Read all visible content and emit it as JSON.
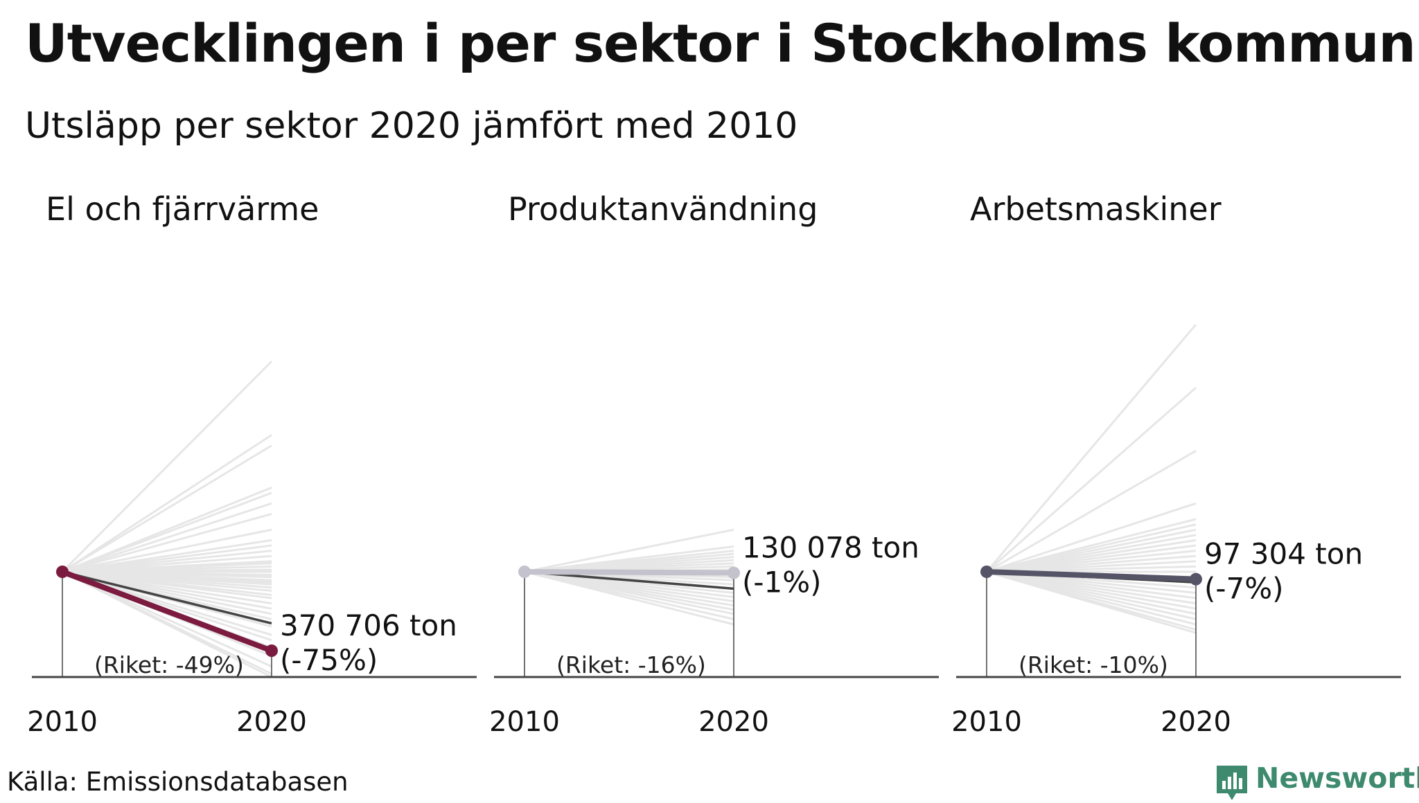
{
  "title": "Utvecklingen i per sektor i Stockholms kommun",
  "subtitle": "Utsläpp per sektor 2020 jämfört med 2010",
  "source": "Källa: Emissionsdatabasen",
  "brand": "Newsworthy",
  "colors": {
    "brand": "#3d8a6e",
    "background_lines": "#e6e6e6",
    "national_line": "#444444",
    "axis": "#444444"
  },
  "chart_data": [
    {
      "type": "line",
      "title": "El och fjärrvärme",
      "x": [
        "2010",
        "2020"
      ],
      "series": [
        {
          "name": "",
          "values": [
            1.0,
            0.25
          ],
          "value_label": "370 706 ton",
          "change_label": "(-75%)",
          "color": "#7a1b3f"
        },
        {
          "name": "Riket",
          "values": [
            1.0,
            0.51
          ],
          "label": "(Riket: -49%)"
        }
      ],
      "background_change_pct": [
        -100,
        -97,
        -90,
        -80,
        -72,
        -65,
        -60,
        -52,
        -45,
        -40,
        -35,
        -30,
        -25,
        -22,
        -18,
        -15,
        -12,
        -10,
        -8,
        -5,
        -3,
        0,
        2,
        5,
        8,
        10,
        15,
        20,
        25,
        30,
        40,
        55,
        65,
        75,
        80,
        120,
        130,
        200
      ],
      "ylim": [
        0,
        3.0
      ]
    },
    {
      "type": "line",
      "title": "Produktanvändning",
      "x": [
        "2010",
        "2020"
      ],
      "series": [
        {
          "name": "",
          "values": [
            1.0,
            0.99
          ],
          "value_label": "130 078 ton",
          "change_label": "(-1%)",
          "color": "#c4c2cc"
        },
        {
          "name": "Riket",
          "values": [
            1.0,
            0.84
          ],
          "label": "(Riket: -16%)"
        }
      ],
      "background_change_pct": [
        -50,
        -45,
        -40,
        -36,
        -32,
        -28,
        -24,
        -20,
        -16,
        -12,
        -8,
        -5,
        -2,
        2,
        5,
        8,
        11,
        14,
        17,
        20,
        24,
        40
      ],
      "ylim": [
        0,
        3.0
      ]
    },
    {
      "type": "line",
      "title": "Arbetsmaskiner",
      "x": [
        "2010",
        "2020"
      ],
      "series": [
        {
          "name": "",
          "values": [
            1.0,
            0.93
          ],
          "value_label": "97 304 ton",
          "change_label": "(-7%)",
          "color": "#555366"
        },
        {
          "name": "Riket",
          "values": [
            1.0,
            0.9
          ],
          "label": "(Riket: -10%)"
        }
      ],
      "background_change_pct": [
        -58,
        -55,
        -50,
        -45,
        -40,
        -35,
        -30,
        -25,
        -20,
        -15,
        -10,
        -5,
        0,
        5,
        10,
        15,
        20,
        25,
        30,
        35,
        40,
        45,
        50,
        65,
        115,
        175,
        235
      ],
      "ylim": [
        0,
        3.0
      ]
    }
  ]
}
